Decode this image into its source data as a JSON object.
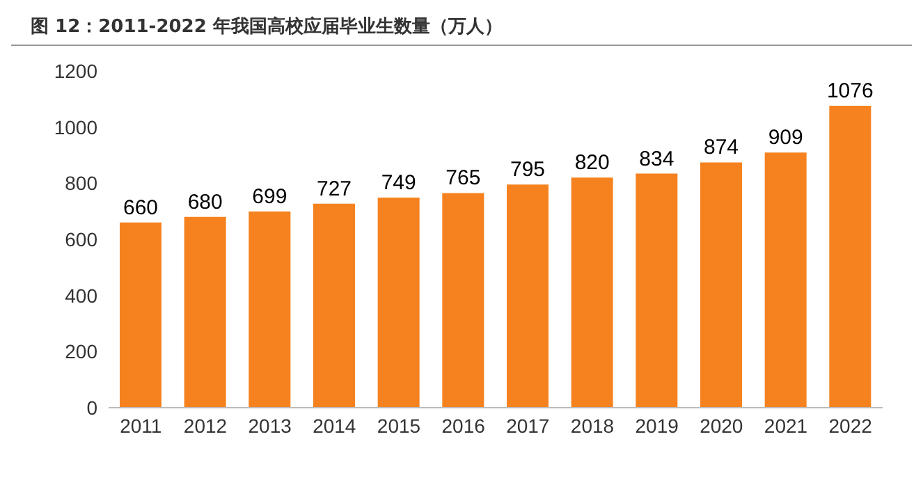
{
  "chart_data": {
    "type": "bar",
    "title": "图 12：2011-2022 年我国高校应届毕业生数量（万人）",
    "categories": [
      "2011",
      "2012",
      "2013",
      "2014",
      "2015",
      "2016",
      "2017",
      "2018",
      "2019",
      "2020",
      "2021",
      "2022"
    ],
    "values": [
      660,
      680,
      699,
      727,
      749,
      765,
      795,
      820,
      834,
      874,
      909,
      1076
    ],
    "color": "#f5821f",
    "ylim": [
      0,
      1200
    ],
    "yticks": [
      0,
      200,
      400,
      600,
      800,
      1000,
      1200
    ],
    "grid": false,
    "data_labels": true
  }
}
